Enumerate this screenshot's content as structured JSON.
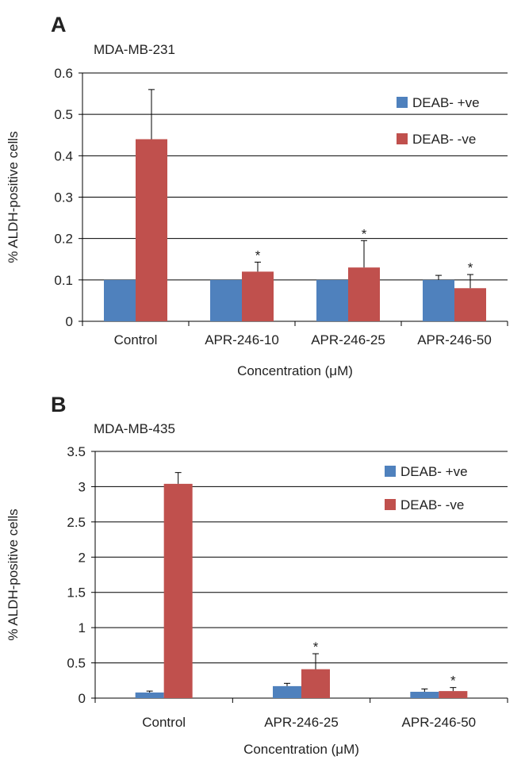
{
  "colors": {
    "deab_pos": "#4f81bd",
    "deab_neg": "#c0504d",
    "grid": "#000000",
    "errorbar": "#000000"
  },
  "chart_data": [
    {
      "type": "bar",
      "panel_label": "A",
      "title": "MDA-MB-231",
      "xlabel": "Concentration (μM)",
      "ylabel": "% ALDH-positive cells",
      "ylim": [
        0,
        0.6
      ],
      "yticks": [
        0,
        0.1,
        0.2,
        0.3,
        0.4,
        0.5,
        0.6
      ],
      "ytick_labels": [
        "0",
        "0.1",
        "0.2",
        "0.3",
        "0.4",
        "0.5",
        "0.6"
      ],
      "grid": true,
      "legend_position": "top-right",
      "categories": [
        "Control",
        "APR-246-10",
        "APR-246-25",
        "APR-246-50"
      ],
      "series": [
        {
          "name": "DEAB- +ve",
          "color": "#4f81bd",
          "values": [
            0.1,
            0.1,
            0.1,
            0.1
          ],
          "errors": [
            0,
            0,
            0,
            0.011
          ]
        },
        {
          "name": "DEAB- -ve",
          "color": "#c0504d",
          "values": [
            0.44,
            0.12,
            0.13,
            0.08
          ],
          "errors": [
            0.12,
            0.023,
            0.065,
            0.033
          ]
        }
      ],
      "annotations": [
        {
          "text": "*",
          "category": 1,
          "series": 1
        },
        {
          "text": "*",
          "category": 2,
          "series": 1
        },
        {
          "text": "*",
          "category": 3,
          "series": 1
        }
      ]
    },
    {
      "type": "bar",
      "panel_label": "B",
      "title": "MDA-MB-435",
      "xlabel": "Concentration (μM)",
      "ylabel": "% ALDH-positive cells",
      "ylim": [
        0,
        3.5
      ],
      "yticks": [
        0,
        0.5,
        1,
        1.5,
        2,
        2.5,
        3,
        3.5
      ],
      "ytick_labels": [
        "0",
        "0.5",
        "1",
        "1.5",
        "2",
        "2.5",
        "3",
        "3.5"
      ],
      "grid": true,
      "legend_position": "top-right",
      "categories": [
        "Control",
        "APR-246-25",
        "APR-246-50"
      ],
      "series": [
        {
          "name": "DEAB- +ve",
          "color": "#4f81bd",
          "values": [
            0.08,
            0.17,
            0.09
          ],
          "errors": [
            0.02,
            0.04,
            0.04
          ]
        },
        {
          "name": "DEAB- -ve",
          "color": "#c0504d",
          "values": [
            3.04,
            0.41,
            0.1
          ],
          "errors": [
            0.16,
            0.22,
            0.05
          ]
        }
      ],
      "annotations": [
        {
          "text": "*",
          "category": 1,
          "series": 1
        },
        {
          "text": "*",
          "category": 2,
          "series": 1
        }
      ]
    }
  ]
}
